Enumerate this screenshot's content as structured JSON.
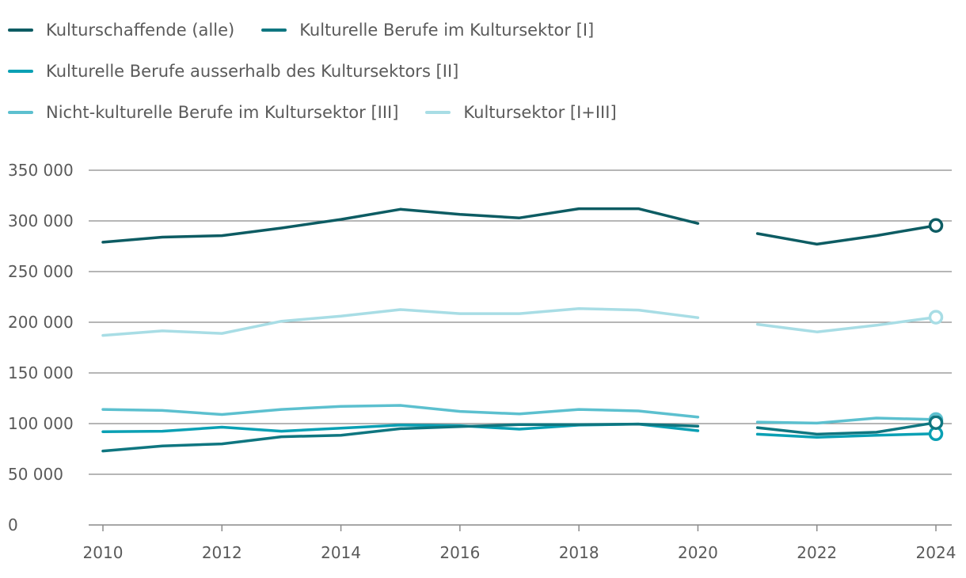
{
  "chart_data": {
    "type": "line",
    "title": "",
    "xlabel": "",
    "ylabel": "",
    "x": [
      2010,
      2011,
      2012,
      2013,
      2014,
      2015,
      2016,
      2017,
      2018,
      2019,
      2020,
      2021,
      2022,
      2023,
      2024
    ],
    "xticks": [
      "2010",
      "2012",
      "2014",
      "2016",
      "2018",
      "2020",
      "2022",
      "2024"
    ],
    "xtick_values": [
      2010,
      2012,
      2014,
      2016,
      2018,
      2020,
      2022,
      2024
    ],
    "ylim": [
      0,
      350000
    ],
    "yticks": [
      "0",
      "50 000",
      "100 000",
      "150 000",
      "200 000",
      "250 000",
      "300 000",
      "350 000"
    ],
    "ytick_values": [
      0,
      50000,
      100000,
      150000,
      200000,
      250000,
      300000,
      350000
    ],
    "series_break_after": 2020,
    "highlight_last": true,
    "series": [
      {
        "key": "alle",
        "name": "Kulturschaffende (alle)",
        "color": "#0d5c63",
        "values": [
          279000,
          284000,
          285500,
          293000,
          301500,
          311500,
          306500,
          303000,
          312000,
          312000,
          297500,
          287500,
          277000,
          285500,
          295500
        ]
      },
      {
        "key": "I",
        "name": "Kulturelle Berufe im Kultursektor [I]",
        "color": "#0f7680",
        "values": [
          73000,
          78000,
          80000,
          87000,
          88500,
          95000,
          97000,
          99000,
          99000,
          99500,
          97500,
          96000,
          89500,
          91500,
          101000
        ]
      },
      {
        "key": "II",
        "name": "Kulturelle Berufe ausserhalb des Kultursektors [II]",
        "color": "#0aa0b4",
        "values": [
          92000,
          92500,
          96500,
          92500,
          95500,
          98500,
          98000,
          94500,
          98500,
          99500,
          93000,
          89500,
          86500,
          88500,
          90000
        ]
      },
      {
        "key": "III",
        "name": "Nicht-kulturelle Berufe im Kultursektor [III]",
        "color": "#5cc0cf",
        "values": [
          114000,
          113000,
          109000,
          114000,
          117000,
          118000,
          112000,
          109500,
          114000,
          112500,
          106500,
          101500,
          100500,
          105500,
          104000
        ]
      },
      {
        "key": "I+III",
        "name": "Kultursektor [I+III]",
        "color": "#a8dde5",
        "values": [
          187000,
          191500,
          189000,
          201000,
          206000,
          212500,
          208500,
          208500,
          213500,
          212000,
          204500,
          198000,
          190500,
          197000,
          205000
        ]
      }
    ]
  },
  "legend": {
    "rows": [
      [
        "alle",
        "I"
      ],
      [
        "II"
      ],
      [
        "III",
        "I+III"
      ]
    ]
  }
}
